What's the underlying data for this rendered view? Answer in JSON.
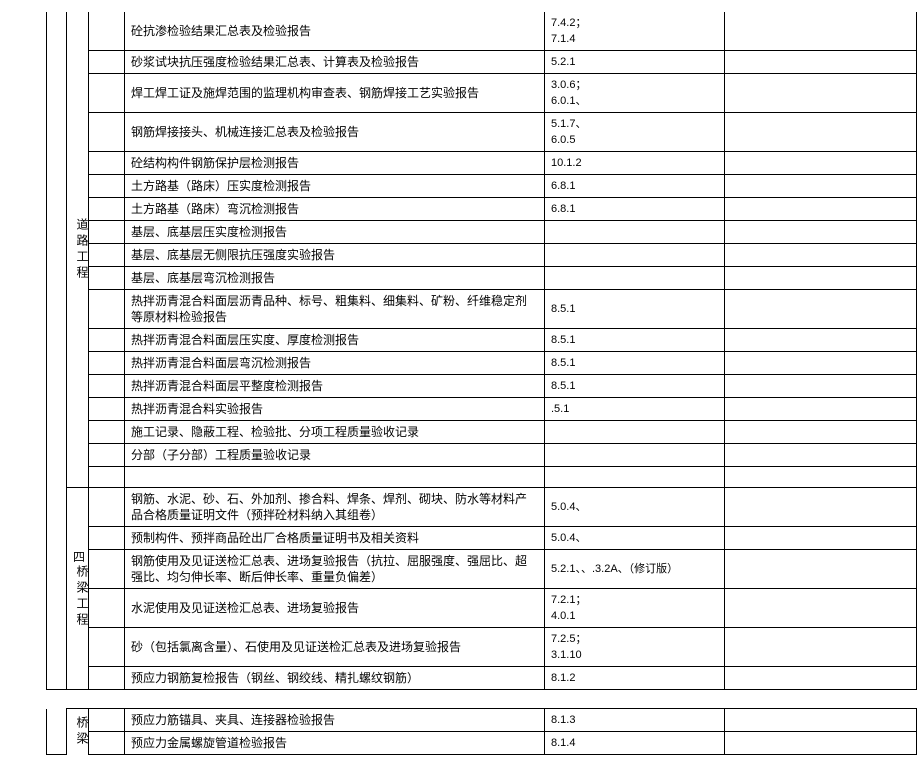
{
  "table1": {
    "section1_label": "道路工程",
    "rows": [
      {
        "d": "砼抗渗检验结果汇总表及检验报告",
        "e": "7.4.2；\n7.1.4",
        "tall": true
      },
      {
        "d": "砂浆试块抗压强度检验结果汇总表、计算表及检验报告",
        "e": "5.2.1"
      },
      {
        "d": "焊工焊工证及施焊范围的监理机构审查表、钢筋焊接工艺实验报告",
        "e": "3.0.6；\n6.0.1、",
        "tall": true
      },
      {
        "d": "钢筋焊接接头、机械连接汇总表及检验报告",
        "e": "5.1.7、\n6.0.5",
        "tall": true
      },
      {
        "d": "砼结构构件钢筋保护层检测报告",
        "e": "10.1.2"
      },
      {
        "d": "土方路基（路床）压实度检测报告",
        "e": "6.8.1"
      },
      {
        "d": "土方路基（路床）弯沉检测报告",
        "e": "6.8.1"
      },
      {
        "d": "基层、底基层压实度检测报告",
        "e": ""
      },
      {
        "d": "基层、底基层无侧限抗压强度实验报告",
        "e": ""
      },
      {
        "d": "基层、底基层弯沉检测报告",
        "e": ""
      },
      {
        "d": "热拌沥青混合料面层沥青品种、标号、粗集料、细集料、矿粉、纤维稳定剂等原材料检验报告",
        "e": "8.5.1",
        "tall": true
      },
      {
        "d": "热拌沥青混合料面层压实度、厚度检测报告",
        "e": "8.5.1"
      },
      {
        "d": "热拌沥青混合料面层弯沉检测报告",
        "e": "8.5.1"
      },
      {
        "d": "热拌沥青混合料面层平整度检测报告",
        "e": "8.5.1"
      },
      {
        "d": "热拌沥青混合料实验报告",
        "e": ".5.1"
      },
      {
        "d": "施工记录、隐蔽工程、检验批、分项工程质量验收记录",
        "e": ""
      },
      {
        "d": "分部（子分部）工程质量验收记录",
        "e": ""
      },
      {
        "d": "",
        "e": ""
      }
    ],
    "section2_num": "四",
    "section2_label": "桥梁工程",
    "rows2": [
      {
        "d": "钢筋、水泥、砂、石、外加剂、掺合料、焊条、焊剂、砌块、防水等材料产品合格质量证明文件（预拌砼材料纳入其组卷）",
        "e": "5.0.4、",
        "tall": true
      },
      {
        "d": "预制构件、预拌商品砼出厂合格质量证明书及相关资料",
        "e": "5.0.4、"
      },
      {
        "d": "钢筋使用及见证送检汇总表、进场复验报告（抗拉、屈服强度、强屈比、超强比、均匀伸长率、断后伸长率、重量负偏差）",
        "e": "5.2.1、、.3.2A、（修订版）",
        "tall": true
      },
      {
        "d": "水泥使用及见证送检汇总表、进场复验报告",
        "e": "7.2.1；\n4.0.1",
        "tall": true
      },
      {
        "d": "砂（包括氯离含量）、石使用及见证送检汇总表及进场复验报告",
        "e": "7.2.5；\n3.1.10",
        "tall": true
      },
      {
        "d": "预应力钢筋复检报告（钢丝、钢绞线、精扎螺纹钢筋）",
        "e": "8.1.2"
      }
    ]
  },
  "table2": {
    "section_label": "桥梁",
    "rows": [
      {
        "d": "预应力筋锚具、夹具、连接器检验报告",
        "e": "8.1.3"
      },
      {
        "d": "预应力金属螺旋管道检验报告",
        "e": "8.1.4"
      }
    ]
  },
  "style": {
    "border_color": "#000000",
    "bg_color": "#ffffff",
    "text_color": "#000000",
    "font_family": "SimSun",
    "font_size_body": 12,
    "font_size_code": 11
  }
}
